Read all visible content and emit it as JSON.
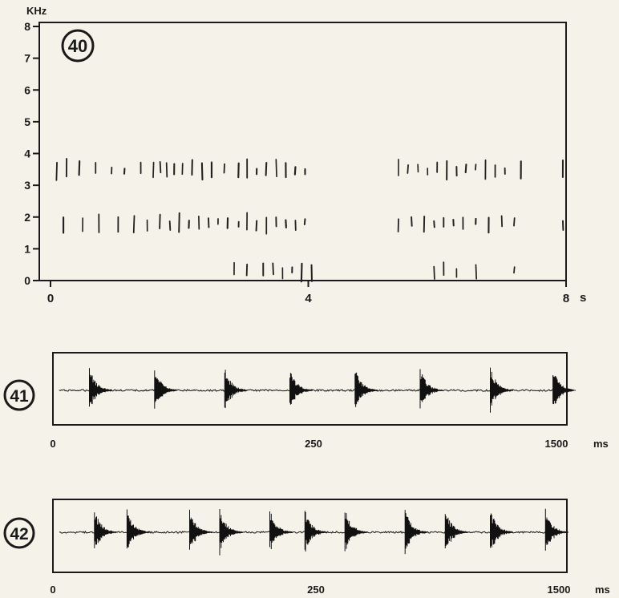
{
  "chart_data": [
    {
      "type": "spectrogram",
      "badge": "40",
      "ylabel": "KHz",
      "xunit": "s",
      "xlim": [
        0,
        8
      ],
      "ylim": [
        0,
        8
      ],
      "yticks": [
        "0",
        "1",
        "2",
        "3",
        "4",
        "5",
        "6",
        "7",
        "8"
      ],
      "xticks": [
        {
          "value": 0,
          "label": "0"
        },
        {
          "value": 4,
          "label": "4"
        },
        {
          "value": 8,
          "label": "8"
        }
      ],
      "bands": [
        {
          "center_khz": 3.5,
          "pulse_times_s": [
            0.1,
            0.25,
            0.45,
            0.7,
            0.95,
            1.15,
            1.4,
            1.6,
            1.7,
            1.8,
            1.92,
            2.05,
            2.2,
            2.35,
            2.5,
            2.7,
            2.92,
            3.05,
            3.2,
            3.35,
            3.5,
            3.65,
            3.8,
            3.95,
            5.4,
            5.55,
            5.7,
            5.85,
            6.0,
            6.15,
            6.3,
            6.45,
            6.6,
            6.75,
            6.9,
            7.05,
            7.3,
            7.95
          ]
        },
        {
          "center_khz": 1.8,
          "pulse_times_s": [
            0.2,
            0.5,
            0.75,
            1.05,
            1.3,
            1.5,
            1.7,
            1.85,
            2.0,
            2.15,
            2.3,
            2.45,
            2.6,
            2.75,
            2.92,
            3.05,
            3.2,
            3.35,
            3.5,
            3.65,
            3.8,
            3.95,
            5.4,
            5.6,
            5.8,
            5.95,
            6.1,
            6.25,
            6.4,
            6.6,
            6.8,
            7.0,
            7.2,
            7.95
          ]
        },
        {
          "center_khz": 0.3,
          "pulse_times_s": [
            2.85,
            3.05,
            3.3,
            3.45,
            3.6,
            3.75,
            3.9,
            4.05,
            5.95,
            6.1,
            6.3,
            6.6,
            7.2
          ]
        }
      ]
    },
    {
      "type": "waveform",
      "badge": "41",
      "xunit": "ms",
      "xticks": [
        "0",
        "250",
        "1500"
      ],
      "burst_positions": [
        0.06,
        0.19,
        0.33,
        0.46,
        0.59,
        0.72,
        0.86,
        0.985
      ]
    },
    {
      "type": "waveform",
      "badge": "42",
      "xunit": "ms",
      "xticks": [
        "0",
        "250",
        "1500"
      ],
      "burst_positions": [
        0.07,
        0.135,
        0.26,
        0.32,
        0.42,
        0.49,
        0.57,
        0.69,
        0.77,
        0.86,
        0.97
      ]
    }
  ]
}
